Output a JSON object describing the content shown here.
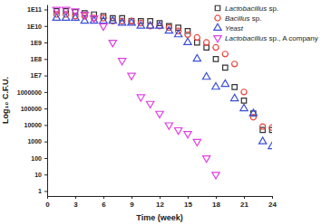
{
  "chart_data": {
    "type": "scatter",
    "x_label": "Time (week)",
    "y_label": "Log₁₀ C.F.U.",
    "log": "y",
    "legend": "upper right",
    "grid": false,
    "xlim": [
      0,
      24
    ],
    "xticks": [
      0,
      3,
      6,
      9,
      12,
      15,
      18,
      21,
      24
    ],
    "ylim": [
      0.5,
      200000000000
    ],
    "yticks": [
      1,
      10,
      100,
      1000,
      10000,
      100000,
      1000000,
      {
        "value": 10000000,
        "label": "1E7"
      },
      {
        "value": 100000000,
        "label": "1E8"
      },
      {
        "value": 1000000000,
        "label": "1E9"
      },
      {
        "value": 10000000000,
        "label": "1E10"
      },
      {
        "value": 100000000000,
        "label": "1E11"
      }
    ],
    "x": [
      1,
      2,
      3,
      4,
      5,
      6,
      7,
      8,
      9,
      10,
      11,
      12,
      13,
      14,
      15,
      16,
      17,
      18,
      19,
      20,
      21,
      22,
      23,
      24
    ],
    "series": [
      {
        "name": "Lactobacillus sp.",
        "color": "#333333",
        "marker": "square",
        "values": [
          80000000000,
          80000000000,
          70000000000,
          60000000000,
          50000000000,
          40000000000,
          30000000000,
          30000000000,
          20000000000,
          20000000000,
          20000000000,
          15000000000,
          10000000000,
          8000000000,
          5000000000,
          1000000000,
          500000000,
          100000000,
          30000000,
          2000000,
          300000,
          50000,
          5000,
          5000
        ]
      },
      {
        "name": "Bacillus sp.",
        "color": "#e8453c",
        "marker": "circle",
        "values": [
          50000000000,
          50000000000,
          40000000000,
          40000000000,
          30000000000,
          30000000000,
          20000000000,
          20000000000,
          20000000000,
          15000000000,
          10000000000,
          10000000000,
          8000000000,
          5000000000,
          3000000000,
          2000000000,
          1000000000,
          500000000,
          200000000,
          50000000,
          1000000,
          30000,
          8000,
          7000
        ]
      },
      {
        "name": "Yeast",
        "color": "#3b4fd6",
        "marker": "triangle",
        "values": [
          30000000000,
          30000000000,
          30000000000,
          20000000000,
          20000000000,
          20000000000,
          20000000000,
          15000000000,
          15000000000,
          10000000000,
          10000000000,
          10000000000,
          5000000000,
          3000000000,
          1000000000,
          100000000,
          8000000,
          2000000,
          3000000,
          400000,
          100000,
          50000,
          1000,
          500
        ]
      },
      {
        "name": "Lactobacillus sp., A company",
        "color": "#e040e0",
        "marker": "triangle-down",
        "values": [
          100000000000,
          100000000000,
          80000000000,
          50000000000,
          30000000000,
          10000000000,
          1000000000,
          80000000,
          10000000,
          500000,
          200000,
          50000,
          10000,
          5000,
          3000,
          1000,
          100,
          10,
          null,
          null,
          null,
          null,
          null,
          null
        ]
      }
    ]
  }
}
